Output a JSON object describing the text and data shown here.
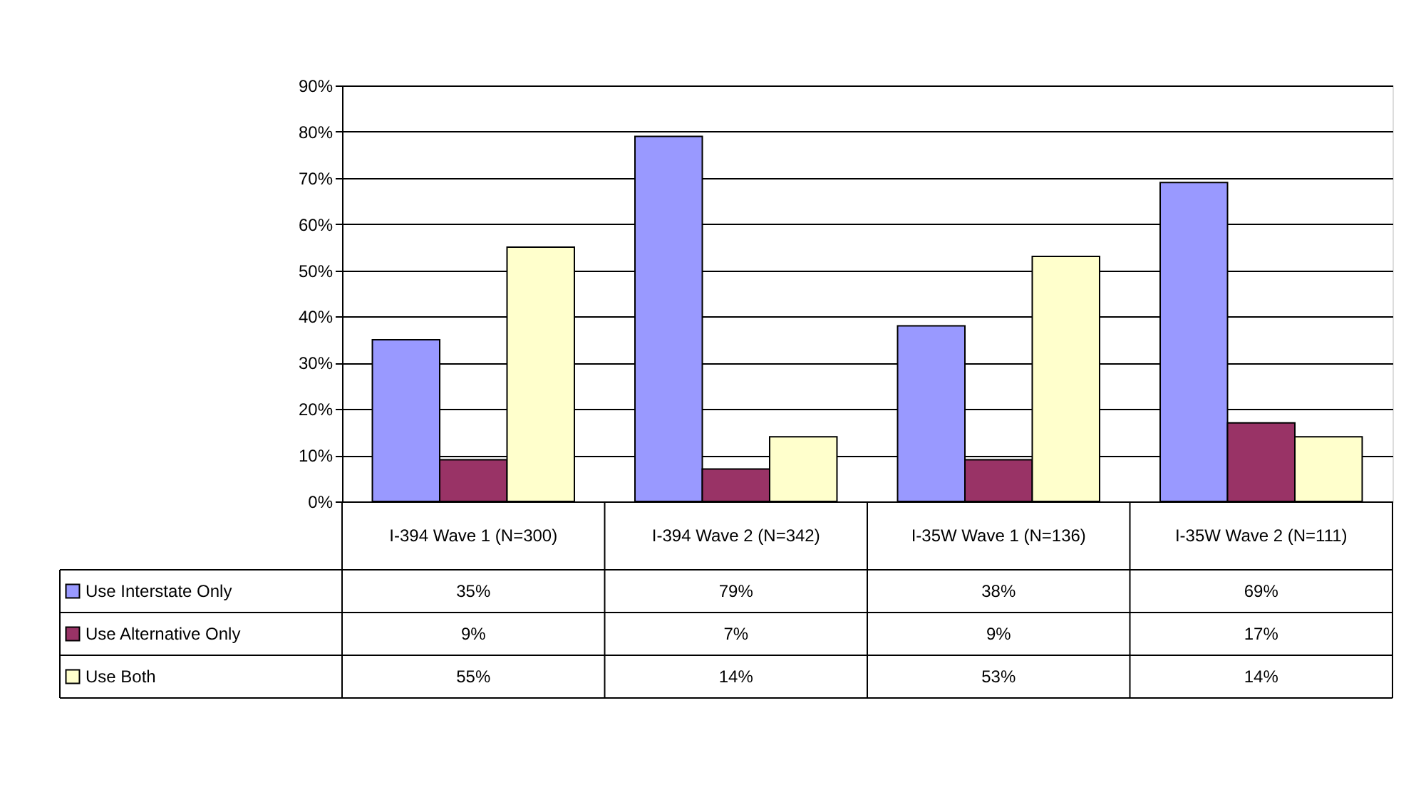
{
  "chart_data": {
    "type": "bar",
    "categories": [
      "I-394 Wave 1 (N=300)",
      "I-394 Wave 2 (N=342)",
      "I-35W Wave 1 (N=136)",
      "I-35W Wave 2 (N=111)"
    ],
    "series": [
      {
        "name": "Use Interstate Only",
        "color": "#9999ff",
        "values": [
          35,
          79,
          38,
          69
        ],
        "value_labels": [
          "35%",
          "79%",
          "38%",
          "69%"
        ]
      },
      {
        "name": "Use Alternative Only",
        "color": "#993366",
        "values": [
          9,
          7,
          9,
          17
        ],
        "value_labels": [
          "9%",
          "7%",
          "9%",
          "17%"
        ]
      },
      {
        "name": "Use Both",
        "color": "#ffffcc",
        "values": [
          55,
          14,
          53,
          14
        ],
        "value_labels": [
          "55%",
          "14%",
          "53%",
          "14%"
        ]
      }
    ],
    "ylim": [
      0,
      90
    ],
    "yticks": [
      {
        "value": 0,
        "label": "0%"
      },
      {
        "value": 10,
        "label": "10%"
      },
      {
        "value": 20,
        "label": "20%"
      },
      {
        "value": 30,
        "label": "30%"
      },
      {
        "value": 40,
        "label": "40%"
      },
      {
        "value": 50,
        "label": "50%"
      },
      {
        "value": 60,
        "label": "60%"
      },
      {
        "value": 70,
        "label": "70%"
      },
      {
        "value": 80,
        "label": "80%"
      },
      {
        "value": 90,
        "label": "90%"
      }
    ],
    "grid": "y",
    "legend": "bottom left"
  }
}
